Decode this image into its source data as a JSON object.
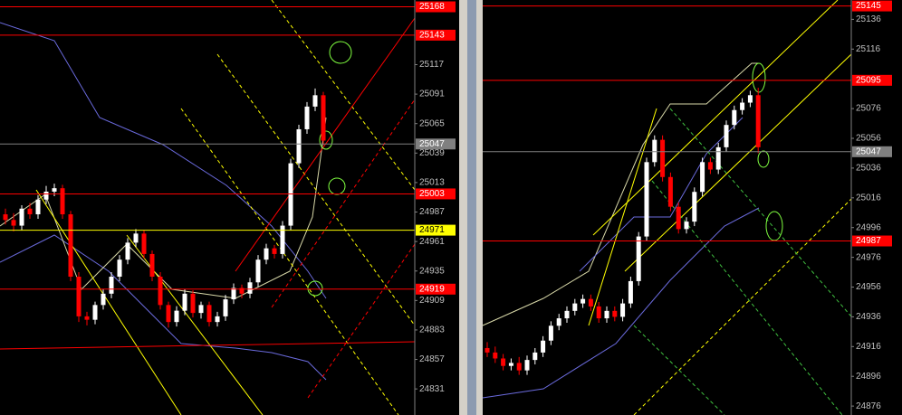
{
  "chart_data": [
    {
      "type": "candlestick",
      "ylim": [
        24808,
        25174
      ],
      "yticks": [
        25117,
        25091,
        25065,
        25039,
        25013,
        24987,
        24961,
        24935,
        24909,
        24883,
        24857,
        24831
      ],
      "up_color": "#ffffff",
      "down_color": "#ff0000",
      "open": [
        24985,
        24980,
        24975,
        24990,
        24985,
        24998,
        25005,
        25008,
        24985,
        24930,
        24895,
        24892,
        24905,
        24915,
        24930,
        24945,
        24960,
        24968,
        24950,
        24930,
        24905,
        24890,
        24900,
        24915,
        24898,
        24905,
        24890,
        24895,
        24910,
        24920,
        24915,
        24925,
        24945,
        24955,
        24950,
        24975,
        25030,
        25060,
        25080,
        25090
      ],
      "high": [
        24990,
        24986,
        24993,
        24995,
        25002,
        25010,
        25012,
        25011,
        24988,
        24934,
        24899,
        24908,
        24919,
        24934,
        24949,
        24964,
        24972,
        24971,
        24953,
        24934,
        24908,
        24904,
        24919,
        24918,
        24908,
        24908,
        24899,
        24914,
        24924,
        24923,
        24929,
        24949,
        24959,
        24958,
        24979,
        25034,
        25064,
        25084,
        25096,
        25093
      ],
      "low": [
        24976,
        24970,
        24971,
        24981,
        24981,
        24994,
        25001,
        24981,
        24926,
        24890,
        24887,
        24888,
        24901,
        24911,
        24926,
        24941,
        24956,
        24946,
        24926,
        24901,
        24885,
        24886,
        24896,
        24894,
        24893,
        24886,
        24886,
        24891,
        24906,
        24911,
        24911,
        24921,
        24941,
        24946,
        24946,
        24971,
        25026,
        25056,
        25076,
        25046
      ],
      "close": [
        24980,
        24975,
        24990,
        24985,
        24998,
        25005,
        25008,
        24985,
        24930,
        24895,
        24892,
        24905,
        24915,
        24930,
        24945,
        24960,
        24968,
        24950,
        24930,
        24905,
        24890,
        24900,
        24915,
        24898,
        24905,
        24890,
        24895,
        24910,
        24920,
        24915,
        24925,
        24945,
        24955,
        24950,
        24975,
        25030,
        25060,
        25080,
        25090,
        25050
      ],
      "levels": [
        {
          "value": 25168,
          "color": "#ff0000"
        },
        {
          "value": 25143,
          "color": "#ff0000"
        },
        {
          "value": 25047,
          "color": "#808080"
        },
        {
          "value": 25003,
          "color": "#ff0000"
        },
        {
          "value": 24971,
          "color": "#ffff00"
        },
        {
          "value": 24919,
          "color": "#ff0000"
        }
      ]
    },
    {
      "type": "candlestick",
      "ylim": [
        24870,
        25149
      ],
      "yticks": [
        25136,
        25116,
        25076,
        25056,
        25036,
        25016,
        24996,
        24976,
        24956,
        24936,
        24916,
        24896,
        24876
      ],
      "up_color": "#ffffff",
      "down_color": "#ff0000",
      "open": [
        24915,
        24912,
        24908,
        24903,
        24905,
        24900,
        24907,
        24912,
        24920,
        24930,
        24935,
        24940,
        24945,
        24948,
        24943,
        24935,
        24940,
        24936,
        24945,
        24960,
        24990,
        25040,
        25055,
        25030,
        25010,
        24995,
        25000,
        25020,
        25040,
        25035,
        25050,
        25065,
        25075,
        25080,
        25085
      ],
      "high": [
        24919,
        24916,
        24911,
        24908,
        24909,
        24910,
        24915,
        24923,
        24933,
        24938,
        24943,
        24948,
        24951,
        24951,
        24946,
        24943,
        24943,
        24948,
        24963,
        24993,
        25043,
        25058,
        25058,
        25033,
        25013,
        25003,
        25023,
        25043,
        25043,
        25053,
        25068,
        25078,
        25083,
        25088,
        25090
      ],
      "low": [
        24909,
        24905,
        24900,
        24900,
        24897,
        24897,
        24904,
        24909,
        24917,
        24927,
        24932,
        24937,
        24942,
        24940,
        24932,
        24932,
        24933,
        24933,
        24942,
        24957,
        24987,
        25037,
        25027,
        25007,
        24992,
        24992,
        24997,
        25017,
        25032,
        25032,
        25047,
        25062,
        25072,
        25077,
        25046
      ],
      "close": [
        24912,
        24908,
        24903,
        24905,
        24900,
        24907,
        24912,
        24920,
        24930,
        24935,
        24940,
        24945,
        24948,
        24943,
        24935,
        24940,
        24936,
        24945,
        24960,
        24990,
        25040,
        25055,
        25030,
        25010,
        24995,
        25000,
        25020,
        25040,
        25035,
        25050,
        25065,
        25075,
        25080,
        25085,
        25050
      ],
      "levels": [
        {
          "value": 25145,
          "color": "#ff0000"
        },
        {
          "value": 25095,
          "color": "#ff0000"
        },
        {
          "value": 25047,
          "color": "#808080"
        },
        {
          "value": 24987,
          "color": "#ff0000"
        }
      ]
    }
  ]
}
